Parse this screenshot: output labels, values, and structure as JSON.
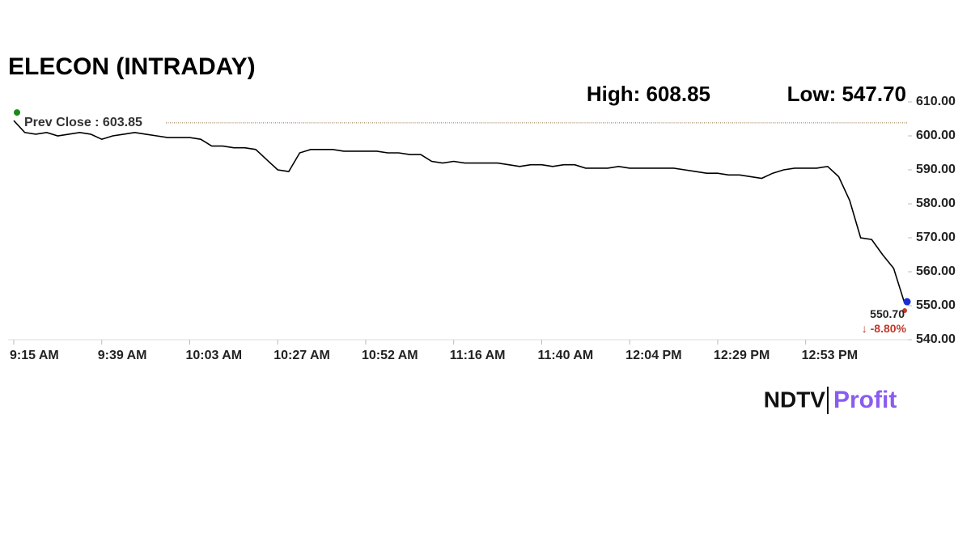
{
  "chart_data": {
    "type": "line",
    "title": "ELECON (INTRADAY)",
    "high": "High: 608.85",
    "low": "Low: 547.70",
    "prev_close": {
      "value": 603.85,
      "label": "Prev Close : 603.85"
    },
    "change": "↓ -8.80%",
    "brand": [
      "NDTV",
      "Profit"
    ],
    "categories": [
      "9:15 AM",
      null,
      null,
      null,
      null,
      null,
      null,
      null,
      "9:39 AM",
      null,
      null,
      null,
      null,
      null,
      null,
      null,
      "10:03 AM",
      null,
      null,
      null,
      null,
      null,
      null,
      null,
      "10:27 AM",
      null,
      null,
      null,
      null,
      null,
      null,
      null,
      "10:52 AM",
      null,
      null,
      null,
      null,
      null,
      null,
      null,
      "11:16 AM",
      null,
      null,
      null,
      null,
      null,
      null,
      null,
      "11:40 AM",
      null,
      null,
      null,
      null,
      null,
      null,
      null,
      "12:04 PM",
      null,
      null,
      null,
      null,
      null,
      null,
      null,
      "12:29 PM",
      null,
      null,
      null,
      null,
      null,
      null,
      null,
      "12:53 PM",
      null,
      null,
      null,
      null,
      null,
      null,
      null,
      null,
      null
    ],
    "series": [
      {
        "color": "#000000",
        "values": [
          604.5,
          601,
          600.5,
          601,
          600,
          600.5,
          601,
          600.5,
          599,
          600,
          600.5,
          601,
          600.5,
          600,
          599.5,
          599.5,
          599.5,
          599,
          597,
          597,
          596.5,
          596.5,
          596,
          593,
          590,
          589.5,
          595,
          596,
          596,
          596,
          595.5,
          595.5,
          595.5,
          595.5,
          595,
          595,
          594.5,
          594.5,
          592.5,
          592,
          592.5,
          592,
          592,
          592,
          592,
          591.5,
          591,
          591.5,
          591.5,
          591,
          591.5,
          591.5,
          590.5,
          590.5,
          590.5,
          591,
          590.5,
          590.5,
          590.5,
          590.5,
          590.5,
          590,
          589.5,
          589,
          589,
          588.5,
          588.5,
          588,
          587.5,
          589,
          590,
          590.5,
          590.5,
          590.5,
          591,
          588,
          581,
          570,
          569.5,
          565,
          561,
          550.7
        ],
        "value_labels": [
          null,
          null,
          null,
          null,
          null,
          null,
          null,
          null,
          null,
          null,
          null,
          null,
          null,
          null,
          null,
          null,
          null,
          null,
          null,
          null,
          null,
          null,
          null,
          null,
          null,
          null,
          null,
          null,
          null,
          null,
          null,
          null,
          null,
          null,
          null,
          null,
          null,
          null,
          null,
          null,
          null,
          null,
          null,
          null,
          null,
          null,
          null,
          null,
          null,
          null,
          null,
          null,
          null,
          null,
          null,
          null,
          null,
          null,
          null,
          null,
          null,
          null,
          null,
          null,
          null,
          null,
          null,
          null,
          null,
          null,
          null,
          null,
          null,
          null,
          null,
          null,
          null,
          null,
          null,
          null,
          null,
          "550.70"
        ]
      }
    ],
    "ylim": [
      540,
      610
    ],
    "yticks": [
      {
        "value": 540,
        "label": "540.00"
      },
      {
        "value": 550,
        "label": "550.00"
      },
      {
        "value": 560,
        "label": "560.00"
      },
      {
        "value": 570,
        "label": "570.00"
      },
      {
        "value": 580,
        "label": "580.00"
      },
      {
        "value": 590,
        "label": "590.00"
      },
      {
        "value": 600,
        "label": "600.00"
      },
      {
        "value": 610,
        "label": "610.00"
      }
    ]
  }
}
